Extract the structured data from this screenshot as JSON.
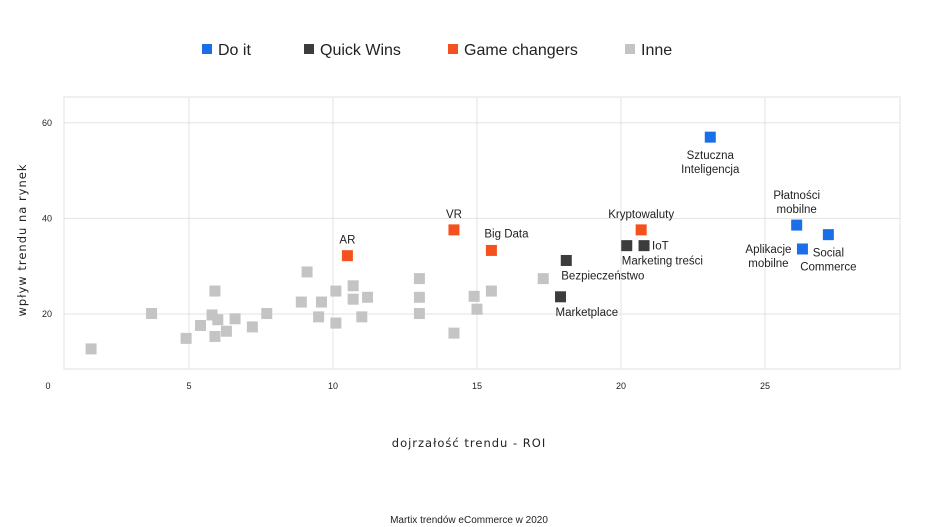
{
  "colors": {
    "do_it": "#1a6fe8",
    "quick_wins": "#3c3c3e",
    "game_changers": "#f4511e",
    "inne": "#c4c4c4"
  },
  "legend": [
    {
      "label": "Do it",
      "color": "#1a6fe8"
    },
    {
      "label": "Quick Wins",
      "color": "#3c3c3e"
    },
    {
      "label": "Game changers",
      "color": "#f4511e"
    },
    {
      "label": "Inne",
      "color": "#c4c4c4"
    }
  ],
  "caption": "Martix trendów eCommerce w 2020",
  "chart_data": {
    "type": "scatter",
    "xlabel": "dojrzałość trendu - ROI",
    "ylabel": "wpływ trendu na rynek",
    "xlim": [
      0,
      30
    ],
    "ylim": [
      10,
      65
    ],
    "x_ticks": [
      0,
      5,
      10,
      15,
      20,
      25
    ],
    "y_ticks": [
      20,
      40,
      60
    ],
    "grid": true,
    "legend_position": "top",
    "series": [
      {
        "name": "Do it",
        "color": "#1a6fe8",
        "points": [
          {
            "x": 23.1,
            "y": 57.0,
            "label": [
              "Sztuczna",
              "Inteligencja"
            ],
            "anchor": "below"
          },
          {
            "x": 26.1,
            "y": 38.6,
            "label": [
              "Płatności",
              "mobilne"
            ],
            "anchor": "above"
          },
          {
            "x": 26.3,
            "y": 33.6,
            "label": [
              "Aplikacje",
              "mobilne"
            ],
            "anchor": "left"
          },
          {
            "x": 27.2,
            "y": 36.6,
            "label": [
              "Social",
              "Commerce"
            ],
            "anchor": "below"
          }
        ]
      },
      {
        "name": "Quick Wins",
        "color": "#3c3c3e",
        "points": [
          {
            "x": 18.1,
            "y": 31.2,
            "label": [
              "Bezpieczeństwo"
            ],
            "anchor": "below-right"
          },
          {
            "x": 17.9,
            "y": 23.6,
            "label": [
              "Marketplace"
            ],
            "anchor": "below-right"
          },
          {
            "x": 20.2,
            "y": 34.3,
            "label": [
              "Marketing treści"
            ],
            "anchor": "below-right"
          },
          {
            "x": 20.8,
            "y": 34.3,
            "label": [
              "IoT"
            ],
            "anchor": "right"
          }
        ]
      },
      {
        "name": "Game changers",
        "color": "#f4511e",
        "points": [
          {
            "x": 10.5,
            "y": 32.2,
            "label": [
              "AR"
            ],
            "anchor": "above"
          },
          {
            "x": 14.2,
            "y": 37.6,
            "label": [
              "VR"
            ],
            "anchor": "above"
          },
          {
            "x": 15.5,
            "y": 33.3,
            "label": [
              "Big Data"
            ],
            "anchor": "above-right"
          },
          {
            "x": 20.7,
            "y": 37.6,
            "label": [
              "Kryptowaluty"
            ],
            "anchor": "above"
          }
        ]
      },
      {
        "name": "Inne",
        "color": "#c4c4c4",
        "points": [
          {
            "x": 1.6,
            "y": 12.7
          },
          {
            "x": 3.7,
            "y": 20.1
          },
          {
            "x": 4.9,
            "y": 14.9
          },
          {
            "x": 5.4,
            "y": 17.6
          },
          {
            "x": 5.8,
            "y": 19.8
          },
          {
            "x": 5.9,
            "y": 15.3
          },
          {
            "x": 5.9,
            "y": 24.8
          },
          {
            "x": 6.0,
            "y": 18.8
          },
          {
            "x": 6.3,
            "y": 16.4
          },
          {
            "x": 6.6,
            "y": 19.0
          },
          {
            "x": 7.2,
            "y": 17.3
          },
          {
            "x": 7.7,
            "y": 20.1
          },
          {
            "x": 8.9,
            "y": 22.5
          },
          {
            "x": 9.1,
            "y": 28.8
          },
          {
            "x": 9.5,
            "y": 19.4
          },
          {
            "x": 9.6,
            "y": 22.5
          },
          {
            "x": 10.1,
            "y": 18.1
          },
          {
            "x": 10.1,
            "y": 24.8
          },
          {
            "x": 10.7,
            "y": 25.9
          },
          {
            "x": 10.7,
            "y": 23.1
          },
          {
            "x": 11.0,
            "y": 19.4
          },
          {
            "x": 11.2,
            "y": 23.5
          },
          {
            "x": 13.0,
            "y": 27.4
          },
          {
            "x": 13.0,
            "y": 23.5
          },
          {
            "x": 13.0,
            "y": 20.1
          },
          {
            "x": 14.2,
            "y": 16.0
          },
          {
            "x": 14.9,
            "y": 23.7
          },
          {
            "x": 15.0,
            "y": 21.0
          },
          {
            "x": 15.5,
            "y": 24.8
          },
          {
            "x": 17.3,
            "y": 27.4
          }
        ]
      }
    ]
  }
}
